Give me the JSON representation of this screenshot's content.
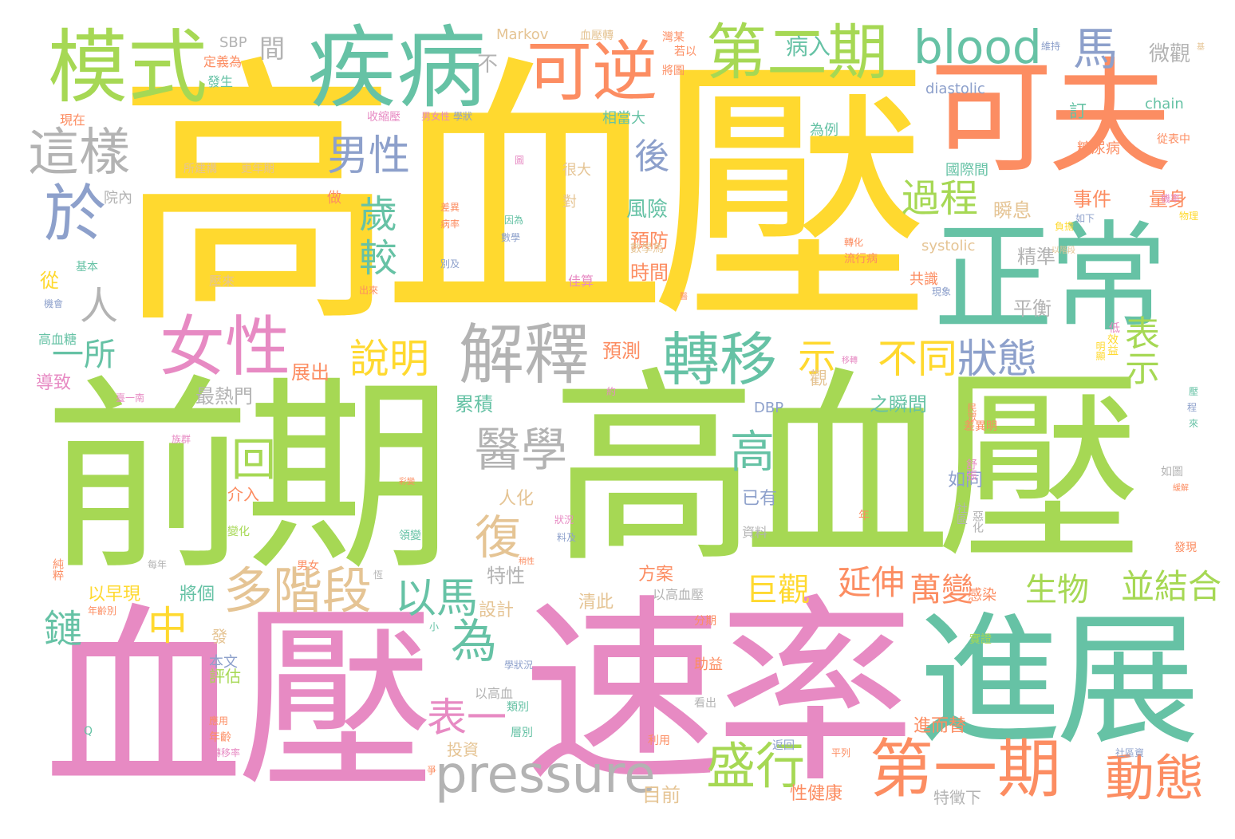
{
  "palette": {
    "yellow": "#ffd92f",
    "green": "#a6d854",
    "pink": "#e78ac3",
    "teal": "#66c2a5",
    "orange": "#fc8d62",
    "blue": "#8da0cb",
    "tan": "#e5c494",
    "grey": "#b3b3b3"
  },
  "words": [
    {
      "text": "高血壓",
      "color": "yellow"
    },
    {
      "text": "前期",
      "color": "green"
    },
    {
      "text": "高血壓",
      "color": "green"
    },
    {
      "text": "血壓",
      "color": "pink"
    },
    {
      "text": "速率",
      "color": "pink"
    },
    {
      "text": "進展",
      "color": "teal"
    },
    {
      "text": "可夫",
      "color": "orange"
    },
    {
      "text": "正常",
      "color": "teal"
    },
    {
      "text": "疾病",
      "color": "teal"
    },
    {
      "text": "模式",
      "color": "green"
    },
    {
      "text": "可逆",
      "color": "orange"
    },
    {
      "text": "第二期",
      "color": "green"
    },
    {
      "text": "blood",
      "color": "teal"
    },
    {
      "text": "馬",
      "color": "blue"
    },
    {
      "text": "於",
      "color": "blue"
    },
    {
      "text": "這樣",
      "color": "grey"
    },
    {
      "text": "女性",
      "color": "pink"
    },
    {
      "text": "男性",
      "color": "blue"
    },
    {
      "text": "解釋",
      "color": "grey"
    },
    {
      "text": "轉移",
      "color": "teal"
    },
    {
      "text": "不同",
      "color": "yellow"
    },
    {
      "text": "狀態",
      "color": "blue"
    },
    {
      "text": "說明",
      "color": "yellow"
    },
    {
      "text": "過程",
      "color": "green"
    },
    {
      "text": "第一期",
      "color": "orange"
    },
    {
      "text": "pressure",
      "color": "grey"
    },
    {
      "text": "多階段",
      "color": "tan"
    },
    {
      "text": "盛行",
      "color": "green"
    },
    {
      "text": "動態",
      "color": "orange"
    },
    {
      "text": "醫學",
      "color": "grey"
    },
    {
      "text": "以馬",
      "color": "teal"
    },
    {
      "text": "表一",
      "color": "pink"
    },
    {
      "text": "為",
      "color": "teal"
    },
    {
      "text": "復",
      "color": "tan"
    },
    {
      "text": "高",
      "color": "teal"
    },
    {
      "text": "回",
      "color": "green"
    },
    {
      "text": "示",
      "color": "yellow"
    },
    {
      "text": "表示",
      "color": "green"
    },
    {
      "text": "萬變",
      "color": "orange"
    },
    {
      "text": "生物",
      "color": "green"
    },
    {
      "text": "並結合",
      "color": "green"
    },
    {
      "text": "延伸",
      "color": "orange"
    },
    {
      "text": "巨觀",
      "color": "yellow"
    },
    {
      "text": "中",
      "color": "yellow"
    },
    {
      "text": "鏈",
      "color": "teal"
    },
    {
      "text": "歲",
      "color": "teal"
    },
    {
      "text": "較",
      "color": "teal"
    },
    {
      "text": "後",
      "color": "blue"
    },
    {
      "text": "人",
      "color": "grey"
    },
    {
      "text": "一所",
      "color": "teal"
    },
    {
      "text": "間",
      "color": "grey"
    },
    {
      "text": "不",
      "color": "grey"
    },
    {
      "text": "病入",
      "color": "teal"
    },
    {
      "text": "微觀",
      "color": "grey"
    },
    {
      "text": "風險",
      "color": "teal"
    },
    {
      "text": "預防",
      "color": "orange"
    },
    {
      "text": "時間",
      "color": "orange"
    },
    {
      "text": "預測",
      "color": "orange"
    },
    {
      "text": "展出",
      "color": "orange"
    },
    {
      "text": "最熱門",
      "color": "grey"
    },
    {
      "text": "累積",
      "color": "teal"
    },
    {
      "text": "之瞬間",
      "color": "teal"
    },
    {
      "text": "瞬息",
      "color": "tan"
    },
    {
      "text": "事件",
      "color": "orange"
    },
    {
      "text": "量身",
      "color": "orange"
    },
    {
      "text": "精準",
      "color": "grey"
    },
    {
      "text": "平衡",
      "color": "grey"
    },
    {
      "text": "人化",
      "color": "tan"
    },
    {
      "text": "特性",
      "color": "grey"
    },
    {
      "text": "以早現",
      "color": "yellow"
    },
    {
      "text": "將個",
      "color": "teal"
    },
    {
      "text": "清此",
      "color": "tan"
    },
    {
      "text": "方案",
      "color": "orange"
    },
    {
      "text": "設計",
      "color": "tan"
    },
    {
      "text": "如同",
      "color": "blue"
    },
    {
      "text": "已有",
      "color": "blue"
    },
    {
      "text": "目前",
      "color": "tan"
    },
    {
      "text": "進而替",
      "color": "orange"
    },
    {
      "text": "性健康",
      "color": "orange"
    },
    {
      "text": "特徵下",
      "color": "grey"
    },
    {
      "text": "投資",
      "color": "tan"
    },
    {
      "text": "介入",
      "color": "orange"
    },
    {
      "text": "觀",
      "color": "tan"
    },
    {
      "text": "發",
      "color": "tan"
    },
    {
      "text": "評估",
      "color": "green"
    },
    {
      "text": "本文",
      "color": "blue"
    },
    {
      "text": "助益",
      "color": "orange"
    },
    {
      "text": "感染",
      "color": "orange"
    },
    {
      "text": "資料",
      "color": "grey"
    },
    {
      "text": "國際間",
      "color": "teal"
    },
    {
      "text": "糖尿病",
      "color": "orange"
    },
    {
      "text": "訂",
      "color": "teal"
    },
    {
      "text": "相當大",
      "color": "teal"
    },
    {
      "text": "很大",
      "color": "tan"
    },
    {
      "text": "對",
      "color": "tan"
    },
    {
      "text": "為例",
      "color": "teal"
    },
    {
      "text": "共識",
      "color": "orange"
    },
    {
      "text": "做",
      "color": "orange"
    },
    {
      "text": "從",
      "color": "yellow"
    },
    {
      "text": "院內",
      "color": "grey"
    },
    {
      "text": "導致",
      "color": "pink"
    },
    {
      "text": "高血糖",
      "color": "teal"
    },
    {
      "text": "現在",
      "color": "orange"
    },
    {
      "text": "發生",
      "color": "teal"
    },
    {
      "text": "定義為",
      "color": "orange"
    },
    {
      "text": "SBP",
      "color": "grey"
    },
    {
      "text": "Markov",
      "color": "tan"
    },
    {
      "text": "收縮壓",
      "color": "pink"
    },
    {
      "text": "男女性",
      "color": "pink"
    },
    {
      "text": "diastolic",
      "color": "blue"
    },
    {
      "text": "chain",
      "color": "teal"
    },
    {
      "text": "systolic",
      "color": "tan"
    },
    {
      "text": "DBP",
      "color": "blue"
    },
    {
      "text": "所建構",
      "color": "tan"
    },
    {
      "text": "更年期",
      "color": "tan"
    },
    {
      "text": "基本",
      "color": "teal"
    },
    {
      "text": "壓來",
      "color": "tan"
    },
    {
      "text": "佳算",
      "color": "pink"
    },
    {
      "text": "數學馬",
      "color": "tan"
    },
    {
      "text": "流行病",
      "color": "orange"
    },
    {
      "text": "以高血壓",
      "color": "grey"
    },
    {
      "text": "以高血",
      "color": "grey"
    },
    {
      "text": "類別",
      "color": "teal"
    },
    {
      "text": "層別",
      "color": "teal"
    },
    {
      "text": "利用",
      "color": "orange"
    },
    {
      "text": "返回",
      "color": "blue"
    },
    {
      "text": "平列",
      "color": "orange"
    },
    {
      "text": "社區資",
      "color": "blue"
    },
    {
      "text": "如圖",
      "color": "grey"
    },
    {
      "text": "發現",
      "color": "orange"
    },
    {
      "text": "分期",
      "color": "orange"
    },
    {
      "text": "實證",
      "color": "green"
    },
    {
      "text": "舒張",
      "color": "pink"
    },
    {
      "text": "差異明",
      "color": "orange"
    },
    {
      "text": "民眾",
      "color": "orange"
    },
    {
      "text": "社區",
      "color": "grey"
    },
    {
      "text": "惡化",
      "color": "grey"
    },
    {
      "text": "年",
      "color": "orange"
    },
    {
      "text": "效益",
      "color": "yellow"
    },
    {
      "text": "明顯",
      "color": "yellow"
    },
    {
      "text": "看出",
      "color": "grey"
    },
    {
      "text": "小",
      "color": "teal"
    },
    {
      "text": "年齡",
      "color": "orange"
    },
    {
      "text": "應用",
      "color": "orange"
    },
    {
      "text": "轉移率",
      "color": "pink"
    },
    {
      "text": "男女",
      "color": "orange"
    },
    {
      "text": "每年",
      "color": "grey"
    },
    {
      "text": "純粹",
      "color": "orange"
    },
    {
      "text": "年齡別",
      "color": "orange"
    },
    {
      "text": "族群",
      "color": "pink"
    },
    {
      "text": "臺一南",
      "color": "pink"
    },
    {
      "text": "約",
      "color": "pink"
    },
    {
      "text": "移轉",
      "color": "pink"
    },
    {
      "text": "機率",
      "color": "pink"
    },
    {
      "text": "負擔",
      "color": "yellow"
    },
    {
      "text": "物理",
      "color": "yellow"
    },
    {
      "text": "如下",
      "color": "blue"
    },
    {
      "text": "從表中",
      "color": "orange"
    },
    {
      "text": "維持",
      "color": "blue"
    },
    {
      "text": "若以",
      "color": "orange"
    },
    {
      "text": "灣某",
      "color": "orange"
    },
    {
      "text": "將圖",
      "color": "orange"
    },
    {
      "text": "血壓轉",
      "color": "tan"
    },
    {
      "text": "因為",
      "color": "teal"
    },
    {
      "text": "數學",
      "color": "blue"
    },
    {
      "text": "差異",
      "color": "orange"
    },
    {
      "text": "病率",
      "color": "orange"
    },
    {
      "text": "別及",
      "color": "blue"
    },
    {
      "text": "圖",
      "color": "pink"
    },
    {
      "text": "學狀",
      "color": "blue"
    },
    {
      "text": "學狀況",
      "color": "blue"
    },
    {
      "text": "狀況",
      "color": "pink"
    },
    {
      "text": "料及",
      "color": "blue"
    },
    {
      "text": "變化",
      "color": "green"
    },
    {
      "text": "領變",
      "color": "teal"
    },
    {
      "text": "機會",
      "color": "blue"
    },
    {
      "text": "出來",
      "color": "orange"
    },
    {
      "text": "低",
      "color": "pink"
    },
    {
      "text": "壓",
      "color": "teal"
    },
    {
      "text": "來",
      "color": "teal"
    },
    {
      "text": "程",
      "color": "blue"
    },
    {
      "text": "醫",
      "color": "orange"
    },
    {
      "text": "現象",
      "color": "blue"
    },
    {
      "text": "轉化",
      "color": "orange"
    },
    {
      "text": "恆",
      "color": "grey"
    },
    {
      "text": "爭",
      "color": "orange"
    },
    {
      "text": "Q",
      "color": "teal"
    },
    {
      "text": "緩解",
      "color": "orange"
    },
    {
      "text": "稍性",
      "color": "orange"
    },
    {
      "text": "彩變",
      "color": "orange"
    },
    {
      "text": "以階段",
      "color": "tan"
    },
    {
      "text": "基",
      "color": "tan"
    }
  ]
}
